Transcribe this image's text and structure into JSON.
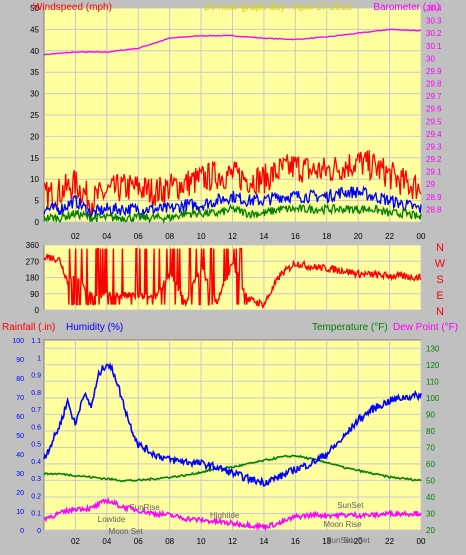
{
  "chart_data": [
    {
      "type": "line",
      "title": "24 hour graph day : April 17 2013",
      "ylabel_left": "Windspeed (mph)",
      "ylabel_right": "Barometer (.in)",
      "x_ticks": [
        "02",
        "04",
        "06",
        "08",
        "10",
        "12",
        "14",
        "16",
        "18",
        "20",
        "22",
        "00"
      ],
      "ylim_left": [
        0,
        50
      ],
      "y_ticks_left": [
        "0",
        "5",
        "10",
        "15",
        "20",
        "25",
        "30",
        "35",
        "40",
        "45",
        "50"
      ],
      "ylim_right": [
        28.7,
        30.4
      ],
      "y_ticks_right": [
        "28.8",
        "28.9",
        "29",
        "29.1",
        "29.2",
        "29.3",
        "29.4",
        "29.5",
        "29.6",
        "29.7",
        "29.8",
        "29.9",
        "30",
        "30.1",
        "30.2",
        "30.3",
        "30.4"
      ],
      "grid": true,
      "colors": {
        "gust": "#ff0000",
        "wind": "#0000ff",
        "lull": "#008000",
        "barometer": "#ff00ff"
      },
      "series": [
        {
          "axis": "right",
          "color": "#ff00ff",
          "x": [
            0,
            2,
            4,
            6,
            8,
            10,
            12,
            14,
            16,
            18,
            20,
            22,
            24
          ],
          "values": [
            30.03,
            30.05,
            30.05,
            30.08,
            30.16,
            30.18,
            30.18,
            30.16,
            30.15,
            30.17,
            30.2,
            30.23,
            30.22
          ]
        },
        {
          "axis": "left",
          "color": "#ff0000",
          "x": [
            0,
            1,
            2,
            3,
            4,
            5,
            6,
            7,
            8,
            9,
            10,
            11,
            12,
            13,
            14,
            15,
            16,
            17,
            18,
            19,
            20,
            21,
            22,
            23,
            24
          ],
          "values": [
            6,
            7,
            9,
            5,
            7,
            8,
            8,
            7,
            8,
            9,
            10,
            11,
            11,
            10,
            10,
            12,
            13,
            12,
            12,
            13,
            14,
            13,
            11,
            9,
            8
          ]
        },
        {
          "axis": "left",
          "color": "#0000ff",
          "x": [
            0,
            1,
            2,
            3,
            4,
            5,
            6,
            7,
            8,
            9,
            10,
            11,
            12,
            13,
            14,
            15,
            16,
            17,
            18,
            19,
            20,
            21,
            22,
            23,
            24
          ],
          "values": [
            3,
            3,
            5,
            2,
            3,
            3,
            3,
            3,
            3,
            4,
            4,
            5,
            6,
            5,
            5,
            6,
            6,
            6,
            6,
            7,
            7,
            6,
            5,
            4,
            3
          ]
        },
        {
          "axis": "left",
          "color": "#008000",
          "x": [
            0,
            1,
            2,
            3,
            4,
            5,
            6,
            7,
            8,
            9,
            10,
            11,
            12,
            13,
            14,
            15,
            16,
            17,
            18,
            19,
            20,
            21,
            22,
            23,
            24
          ],
          "values": [
            1,
            1,
            2,
            1,
            1,
            1,
            1,
            1,
            1,
            2,
            2,
            2,
            3,
            2,
            2,
            3,
            3,
            3,
            3,
            3,
            3,
            3,
            2,
            2,
            1
          ]
        }
      ]
    },
    {
      "type": "line",
      "ylim": [
        0,
        360
      ],
      "y_ticks": [
        "0",
        "90",
        "180",
        "270",
        "360"
      ],
      "x_ticks": [],
      "direction_labels": [
        "N",
        "W",
        "S",
        "E",
        "N"
      ],
      "grid": true,
      "series": [
        {
          "color": "#ff0000",
          "x": [
            0,
            0.5,
            1,
            1.5,
            2,
            3,
            4,
            5,
            6,
            7,
            8,
            9,
            10,
            11,
            12,
            13,
            14,
            15,
            16,
            17,
            18,
            19,
            20,
            21,
            22,
            23,
            24
          ],
          "values": [
            300,
            290,
            280,
            160,
            180,
            80,
            80,
            80,
            80,
            60,
            200,
            40,
            240,
            40,
            260,
            60,
            30,
            190,
            260,
            240,
            230,
            220,
            200,
            195,
            190,
            185,
            180
          ]
        }
      ]
    },
    {
      "type": "line",
      "ylabel_left_outer": "Rainfall (.in)",
      "ylabel_left_inner": "Humidity (%)",
      "ylabel_right_inner": "Temperature (°F)",
      "ylabel_right_outer": "Dew Point (°F)",
      "ylim_rain": [
        0,
        1.1
      ],
      "y_ticks_rain": [
        "0",
        "0.1",
        "0.2",
        "0.3",
        "0.4",
        "0.5",
        "0.6",
        "0.7",
        "0.8",
        "0.9",
        "1",
        "1.1"
      ],
      "ylim_humidity": [
        0,
        100
      ],
      "y_ticks_humidity": [
        "0",
        "10",
        "20",
        "30",
        "40",
        "50",
        "60",
        "70",
        "80",
        "90",
        "100"
      ],
      "ylim_temp": [
        20,
        135
      ],
      "y_ticks_temp": [
        "20",
        "30",
        "40",
        "50",
        "60",
        "70",
        "80",
        "90",
        "100",
        "110",
        "120",
        "130"
      ],
      "x_ticks": [
        "02",
        "04",
        "06",
        "08",
        "10",
        "12",
        "14",
        "16",
        "18",
        "20",
        "22",
        "00"
      ],
      "grid": true,
      "annotations": [
        "SunRise",
        "Lowtide",
        "Moon Set",
        "Hightide",
        "SunSet",
        "Moon Rise",
        "SunSet",
        "SunSet"
      ],
      "series": [
        {
          "axis": "humidity",
          "color": "#0000ff",
          "x": [
            0,
            0.5,
            1,
            1.5,
            2,
            2.5,
            3,
            3.5,
            4,
            4.5,
            5,
            5.5,
            6,
            7,
            8,
            9,
            10,
            11,
            12,
            13,
            14,
            15,
            16,
            17,
            18,
            19,
            20,
            21,
            22,
            23,
            24
          ],
          "values": [
            38,
            46,
            55,
            68,
            55,
            72,
            65,
            82,
            88,
            82,
            68,
            55,
            45,
            40,
            37,
            36,
            35,
            33,
            30,
            27,
            25,
            28,
            32,
            35,
            40,
            48,
            58,
            64,
            68,
            70,
            71
          ]
        },
        {
          "axis": "temp",
          "color": "#008000",
          "x": [
            0,
            1,
            2,
            3,
            4,
            5,
            6,
            7,
            8,
            9,
            10,
            11,
            12,
            13,
            14,
            15,
            16,
            17,
            18,
            19,
            20,
            21,
            22,
            23,
            24
          ],
          "values": [
            54,
            54,
            53,
            52,
            51,
            50,
            50,
            51,
            52,
            53,
            55,
            57,
            58,
            60,
            62,
            64,
            65,
            63,
            61,
            58,
            56,
            54,
            52,
            51,
            50
          ]
        },
        {
          "axis": "temp",
          "color": "#ff00ff",
          "x": [
            0,
            1,
            2,
            3,
            4,
            5,
            6,
            7,
            8,
            9,
            10,
            11,
            12,
            13,
            14,
            15,
            16,
            17,
            18,
            19,
            20,
            21,
            22,
            23,
            24
          ],
          "values": [
            27,
            30,
            33,
            33,
            38,
            34,
            32,
            30,
            29,
            27,
            26,
            25,
            24,
            23,
            22,
            24,
            28,
            29,
            29,
            29,
            29,
            29,
            30,
            30,
            30
          ]
        }
      ]
    }
  ]
}
